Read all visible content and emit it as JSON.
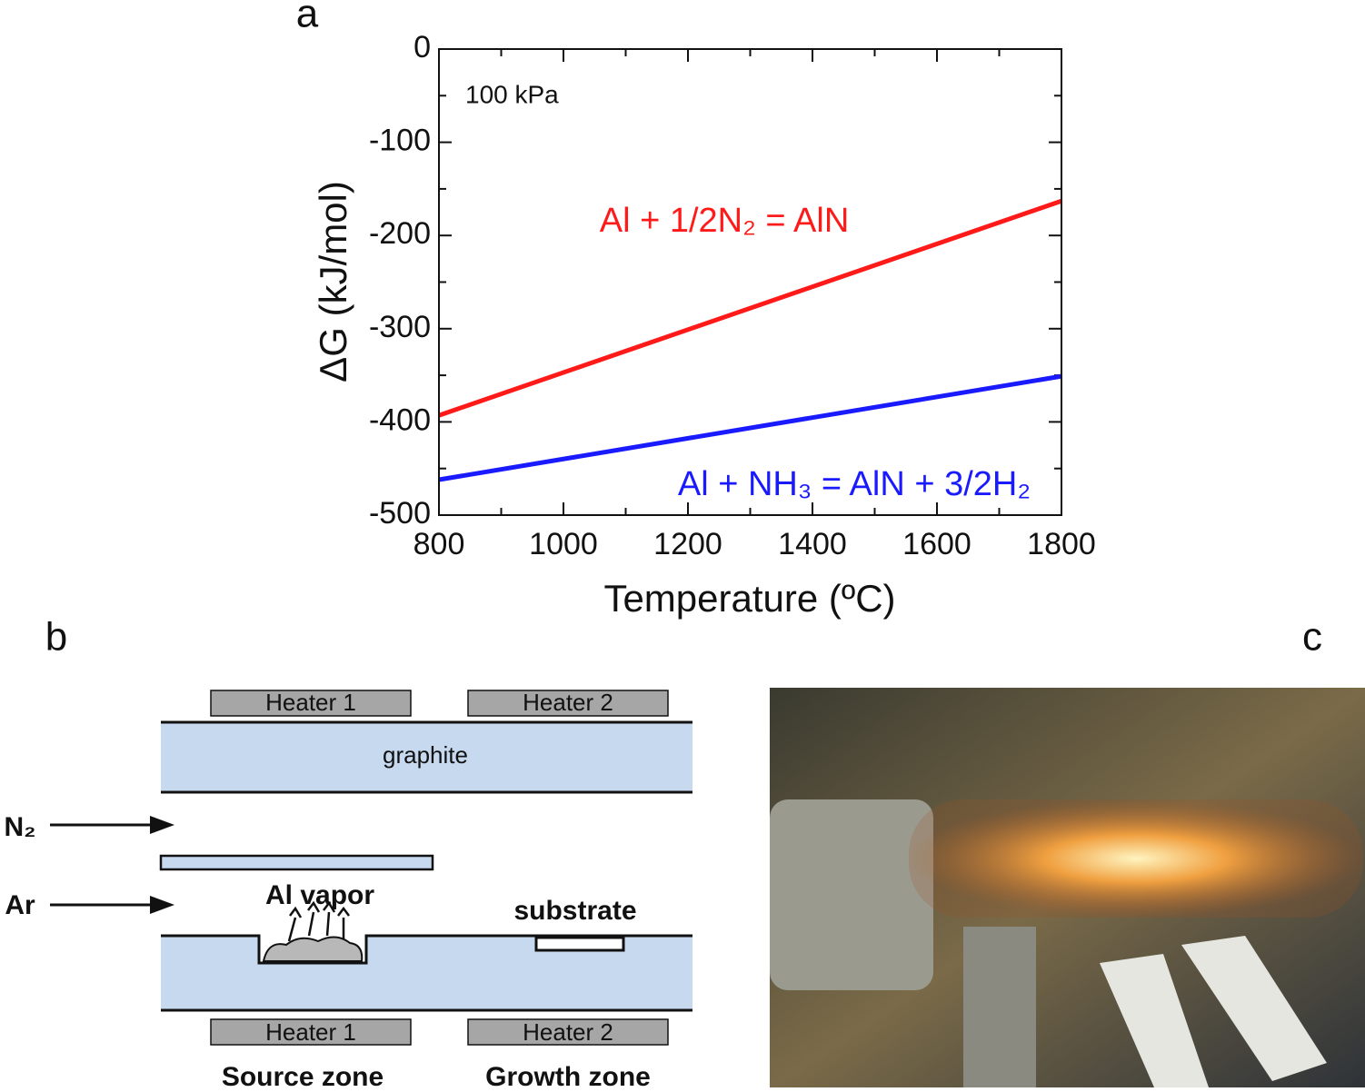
{
  "panel_labels": [
    "a",
    "b",
    "c"
  ],
  "chart_data": {
    "type": "line",
    "x_label": "Temperature (ºC)",
    "y_label": "ΔG (kJ/mol)",
    "annotation": "100 kPa",
    "x": [
      800,
      1800
    ],
    "series": [
      {
        "name": "Al + 1/2N₂ = AlN",
        "color": "#ff1a1a",
        "values": [
          -393,
          -163
        ]
      },
      {
        "name": "Al + NH₃ = AlN + 3/2H₂",
        "color": "#1a1aff",
        "values": [
          -462,
          -351
        ]
      }
    ],
    "xlim": [
      800,
      1800
    ],
    "xticks": [
      800,
      1000,
      1200,
      1400,
      1600,
      1800
    ],
    "xticks_minor": [
      900,
      1100,
      1300,
      1500,
      1700
    ],
    "ylim": [
      -500,
      0
    ],
    "yticks": [
      -500,
      -400,
      -300,
      -200,
      -100,
      0
    ],
    "yticks_minor": [
      -450,
      -350,
      -250,
      -150,
      -50
    ]
  },
  "diagram": {
    "top_heaters": [
      "Heater 1",
      "Heater 2"
    ],
    "upper_block": "graphite",
    "gas_inlets": [
      "N₂",
      "Ar"
    ],
    "source_label": "Al vapor",
    "substrate_label": "substrate",
    "bottom_heaters": [
      "Heater 1",
      "Heater 2"
    ],
    "zones": [
      "Source zone",
      "Growth zone"
    ]
  }
}
